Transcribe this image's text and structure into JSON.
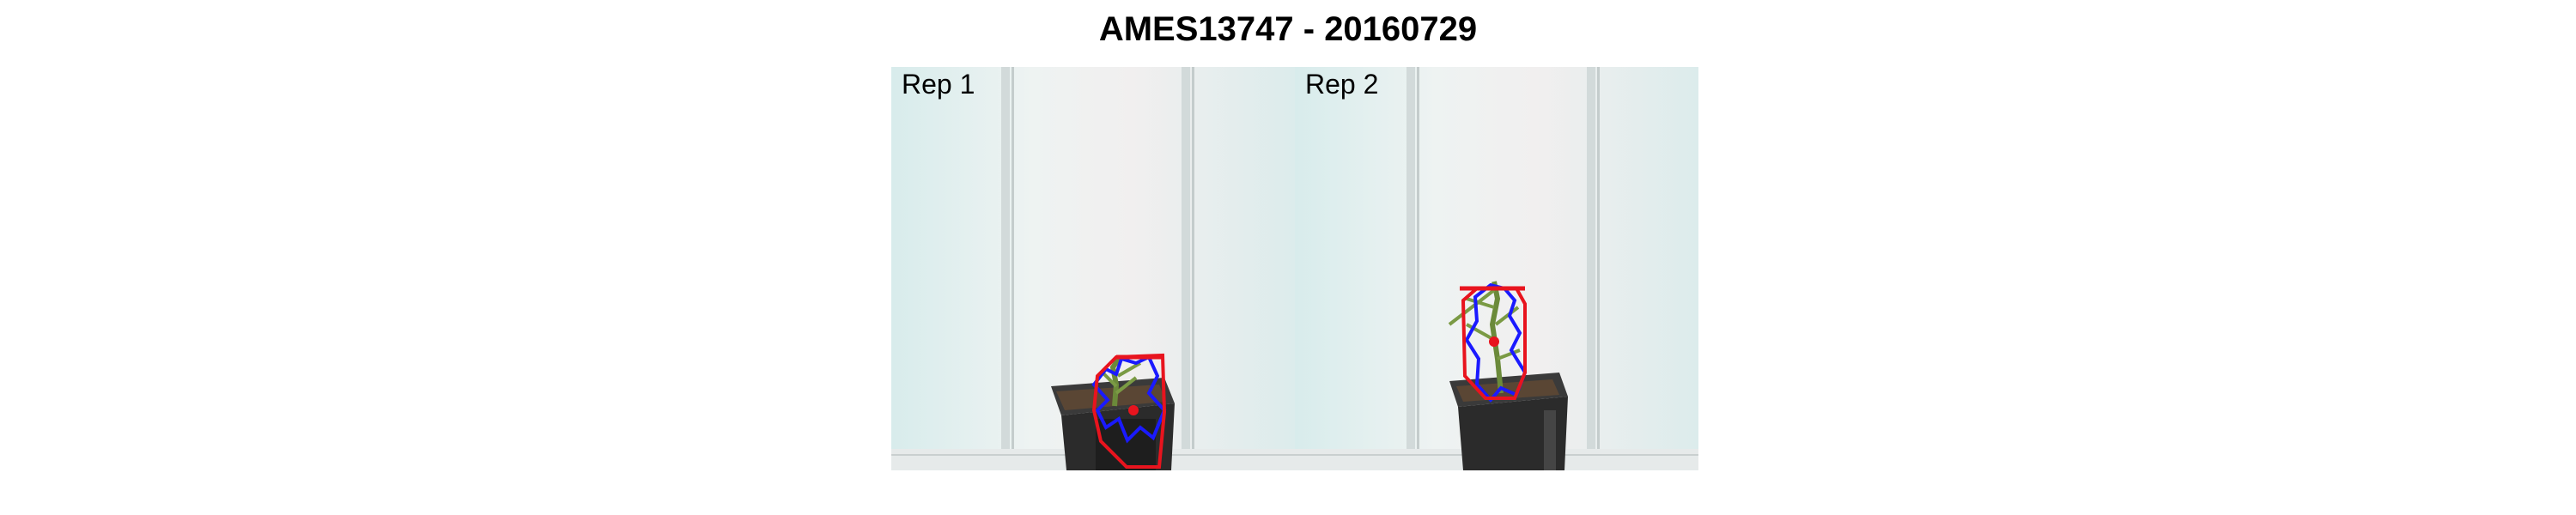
{
  "figure": {
    "title": "AMES13747 - 20160729"
  },
  "panels": [
    {
      "label": "Rep 1",
      "overlay_color": "#e8141e",
      "contour_color": "#1a1aff"
    },
    {
      "label": "Rep 2",
      "overlay_color": "#e8141e",
      "contour_color": "#1a1aff"
    }
  ],
  "colors": {
    "background": "#eaf1f1",
    "pot": "#2e2e2e",
    "soil": "#4a3b2e"
  }
}
